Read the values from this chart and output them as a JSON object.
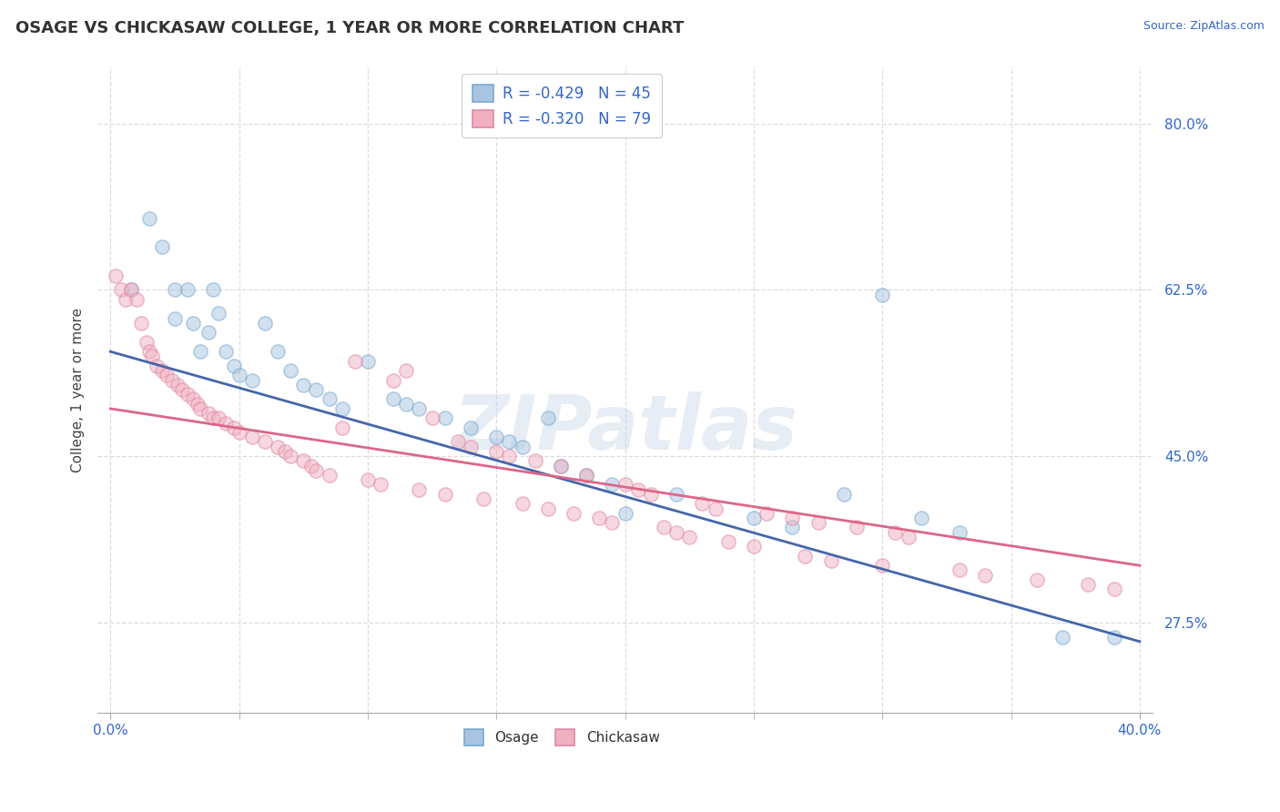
{
  "title": "OSAGE VS CHICKASAW COLLEGE, 1 YEAR OR MORE CORRELATION CHART",
  "source_text": "Source: ZipAtlas.com",
  "ylabel": "College, 1 year or more",
  "xlim": [
    -0.005,
    0.405
  ],
  "ylim": [
    0.18,
    0.86
  ],
  "xtick_positions": [
    0.0,
    0.4
  ],
  "xtick_labels": [
    "0.0%",
    "40.0%"
  ],
  "ytick_positions": [
    0.275,
    0.45,
    0.625,
    0.8
  ],
  "ytick_labels": [
    "27.5%",
    "45.0%",
    "62.5%",
    "80.0%"
  ],
  "grid_x_positions": [
    0.0,
    0.05,
    0.1,
    0.15,
    0.2,
    0.25,
    0.3,
    0.35,
    0.4
  ],
  "watermark": "ZIPatlas",
  "legend_r1": "R = -0.429",
  "legend_n1": "N = 45",
  "legend_r2": "R = -0.320",
  "legend_n2": "N = 79",
  "blue_face_color": "#A8C4E0",
  "blue_edge_color": "#7AAAD0",
  "pink_face_color": "#F0B0C0",
  "pink_edge_color": "#E088A8",
  "blue_line_color": "#4466AA",
  "pink_line_color": "#DD6688",
  "blue_scatter": [
    [
      0.008,
      0.625
    ],
    [
      0.015,
      0.7
    ],
    [
      0.02,
      0.67
    ],
    [
      0.025,
      0.625
    ],
    [
      0.025,
      0.595
    ],
    [
      0.03,
      0.625
    ],
    [
      0.032,
      0.59
    ],
    [
      0.035,
      0.56
    ],
    [
      0.038,
      0.58
    ],
    [
      0.04,
      0.625
    ],
    [
      0.042,
      0.6
    ],
    [
      0.045,
      0.56
    ],
    [
      0.048,
      0.545
    ],
    [
      0.05,
      0.535
    ],
    [
      0.055,
      0.53
    ],
    [
      0.06,
      0.59
    ],
    [
      0.065,
      0.56
    ],
    [
      0.07,
      0.54
    ],
    [
      0.075,
      0.525
    ],
    [
      0.08,
      0.52
    ],
    [
      0.085,
      0.51
    ],
    [
      0.09,
      0.5
    ],
    [
      0.1,
      0.55
    ],
    [
      0.11,
      0.51
    ],
    [
      0.115,
      0.505
    ],
    [
      0.12,
      0.5
    ],
    [
      0.13,
      0.49
    ],
    [
      0.14,
      0.48
    ],
    [
      0.15,
      0.47
    ],
    [
      0.155,
      0.465
    ],
    [
      0.16,
      0.46
    ],
    [
      0.17,
      0.49
    ],
    [
      0.175,
      0.44
    ],
    [
      0.185,
      0.43
    ],
    [
      0.195,
      0.42
    ],
    [
      0.2,
      0.39
    ],
    [
      0.22,
      0.41
    ],
    [
      0.25,
      0.385
    ],
    [
      0.265,
      0.375
    ],
    [
      0.285,
      0.41
    ],
    [
      0.3,
      0.62
    ],
    [
      0.315,
      0.385
    ],
    [
      0.33,
      0.37
    ],
    [
      0.37,
      0.26
    ],
    [
      0.39,
      0.26
    ]
  ],
  "pink_scatter": [
    [
      0.002,
      0.64
    ],
    [
      0.004,
      0.625
    ],
    [
      0.006,
      0.615
    ],
    [
      0.008,
      0.625
    ],
    [
      0.01,
      0.615
    ],
    [
      0.012,
      0.59
    ],
    [
      0.014,
      0.57
    ],
    [
      0.015,
      0.56
    ],
    [
      0.016,
      0.555
    ],
    [
      0.018,
      0.545
    ],
    [
      0.02,
      0.54
    ],
    [
      0.022,
      0.535
    ],
    [
      0.024,
      0.53
    ],
    [
      0.026,
      0.525
    ],
    [
      0.028,
      0.52
    ],
    [
      0.03,
      0.515
    ],
    [
      0.032,
      0.51
    ],
    [
      0.034,
      0.505
    ],
    [
      0.035,
      0.5
    ],
    [
      0.038,
      0.495
    ],
    [
      0.04,
      0.49
    ],
    [
      0.042,
      0.49
    ],
    [
      0.045,
      0.485
    ],
    [
      0.048,
      0.48
    ],
    [
      0.05,
      0.475
    ],
    [
      0.055,
      0.47
    ],
    [
      0.06,
      0.465
    ],
    [
      0.065,
      0.46
    ],
    [
      0.068,
      0.455
    ],
    [
      0.07,
      0.45
    ],
    [
      0.075,
      0.445
    ],
    [
      0.078,
      0.44
    ],
    [
      0.08,
      0.435
    ],
    [
      0.085,
      0.43
    ],
    [
      0.09,
      0.48
    ],
    [
      0.095,
      0.55
    ],
    [
      0.1,
      0.425
    ],
    [
      0.105,
      0.42
    ],
    [
      0.11,
      0.53
    ],
    [
      0.115,
      0.54
    ],
    [
      0.12,
      0.415
    ],
    [
      0.125,
      0.49
    ],
    [
      0.13,
      0.41
    ],
    [
      0.135,
      0.465
    ],
    [
      0.14,
      0.46
    ],
    [
      0.145,
      0.405
    ],
    [
      0.15,
      0.455
    ],
    [
      0.155,
      0.45
    ],
    [
      0.16,
      0.4
    ],
    [
      0.165,
      0.445
    ],
    [
      0.17,
      0.395
    ],
    [
      0.175,
      0.44
    ],
    [
      0.18,
      0.39
    ],
    [
      0.185,
      0.43
    ],
    [
      0.19,
      0.385
    ],
    [
      0.195,
      0.38
    ],
    [
      0.2,
      0.42
    ],
    [
      0.205,
      0.415
    ],
    [
      0.21,
      0.41
    ],
    [
      0.215,
      0.375
    ],
    [
      0.22,
      0.37
    ],
    [
      0.225,
      0.365
    ],
    [
      0.23,
      0.4
    ],
    [
      0.235,
      0.395
    ],
    [
      0.24,
      0.36
    ],
    [
      0.25,
      0.355
    ],
    [
      0.255,
      0.39
    ],
    [
      0.265,
      0.385
    ],
    [
      0.27,
      0.345
    ],
    [
      0.275,
      0.38
    ],
    [
      0.28,
      0.34
    ],
    [
      0.29,
      0.375
    ],
    [
      0.3,
      0.335
    ],
    [
      0.305,
      0.37
    ],
    [
      0.31,
      0.365
    ],
    [
      0.33,
      0.33
    ],
    [
      0.34,
      0.325
    ],
    [
      0.36,
      0.32
    ],
    [
      0.38,
      0.315
    ],
    [
      0.39,
      0.31
    ]
  ],
  "blue_trendline": [
    [
      0.0,
      0.56
    ],
    [
      0.4,
      0.255
    ]
  ],
  "pink_trendline": [
    [
      0.0,
      0.5
    ],
    [
      0.4,
      0.335
    ]
  ],
  "grid_color": "#DDDDDD",
  "background_color": "#FFFFFF",
  "title_fontsize": 13,
  "axis_label_fontsize": 11,
  "tick_fontsize": 11,
  "scatter_size": 120,
  "scatter_alpha": 0.5,
  "scatter_linewidth": 1.2,
  "line_width": 2.0
}
